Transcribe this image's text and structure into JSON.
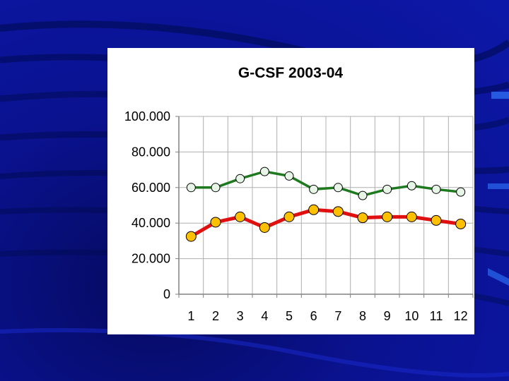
{
  "colors": {
    "background": "#0a1290",
    "panel": "#ffffff",
    "grid": "#b0b0b0",
    "series_top_line": "#1e7a1e",
    "series_top_marker": "#e6f5e6",
    "series_bottom_line": "#e01010",
    "series_bottom_marker": "#ffc000"
  },
  "chart_data": {
    "type": "line",
    "title": "G-CSF 2003-04",
    "xlabel": "",
    "ylabel": "",
    "x": [
      "1",
      "2",
      "3",
      "4",
      "5",
      "6",
      "7",
      "8",
      "9",
      "10",
      "11",
      "12"
    ],
    "ylim": [
      0,
      100000
    ],
    "yticks": [
      {
        "value": 0,
        "label": "0"
      },
      {
        "value": 20000,
        "label": "20.000"
      },
      {
        "value": 40000,
        "label": "40.000"
      },
      {
        "value": 60000,
        "label": "60.000"
      },
      {
        "value": 80000,
        "label": "80.000"
      },
      {
        "value": 100000,
        "label": "100.000"
      }
    ],
    "grid": true,
    "legend": "none",
    "series": [
      {
        "values": [
          60000,
          60000,
          65000,
          69000,
          66500,
          59000,
          60000,
          55500,
          59000,
          61000,
          59000,
          57500
        ],
        "color": "#1e7a1e",
        "marker": "#e6f5e6"
      },
      {
        "values": [
          32500,
          40500,
          43500,
          37500,
          43500,
          47500,
          46500,
          43000,
          43500,
          43500,
          41500,
          39500
        ],
        "color": "#e01010",
        "marker": "#ffc000"
      }
    ]
  }
}
